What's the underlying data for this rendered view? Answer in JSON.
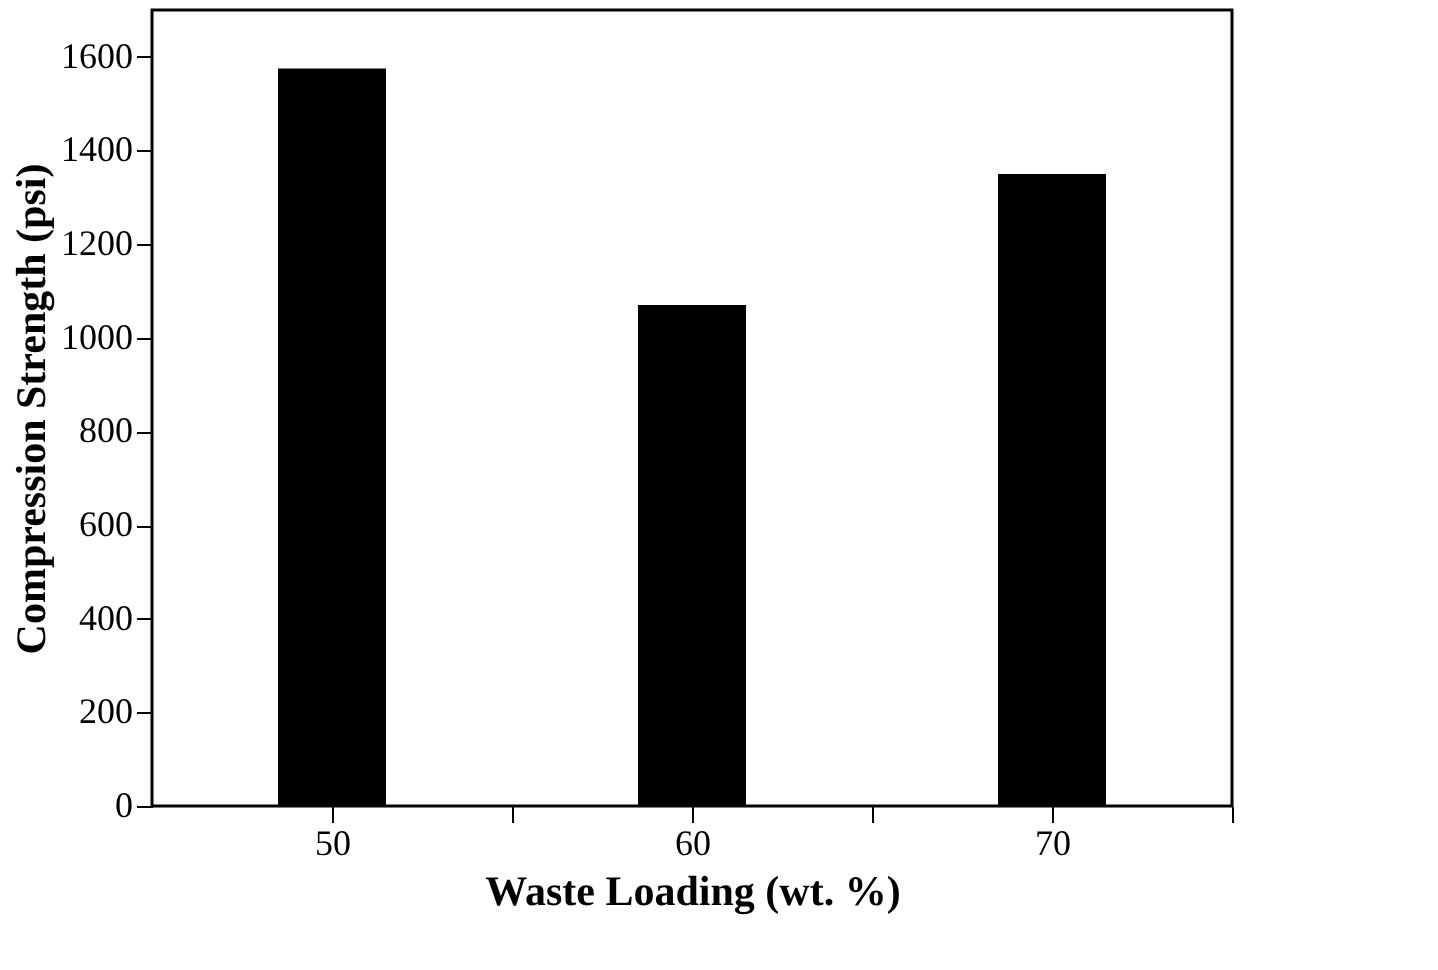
{
  "chart_data": {
    "type": "bar",
    "xlabel": "Waste Loading (wt. %)",
    "ylabel": "Compression Strength (psi)",
    "x": [
      50,
      60,
      70
    ],
    "values": [
      1575,
      1070,
      1350
    ],
    "color": "#000000",
    "xlim": [
      45,
      75
    ],
    "xticks": [
      50,
      {
        "value": 55,
        "label": null
      },
      60,
      {
        "value": 65,
        "label": null
      },
      70,
      {
        "value": 75,
        "label": null
      }
    ],
    "ylim": [
      0,
      1700
    ],
    "yticks": [
      0,
      200,
      400,
      600,
      800,
      1000,
      1200,
      1400,
      1600
    ],
    "grid": false
  }
}
